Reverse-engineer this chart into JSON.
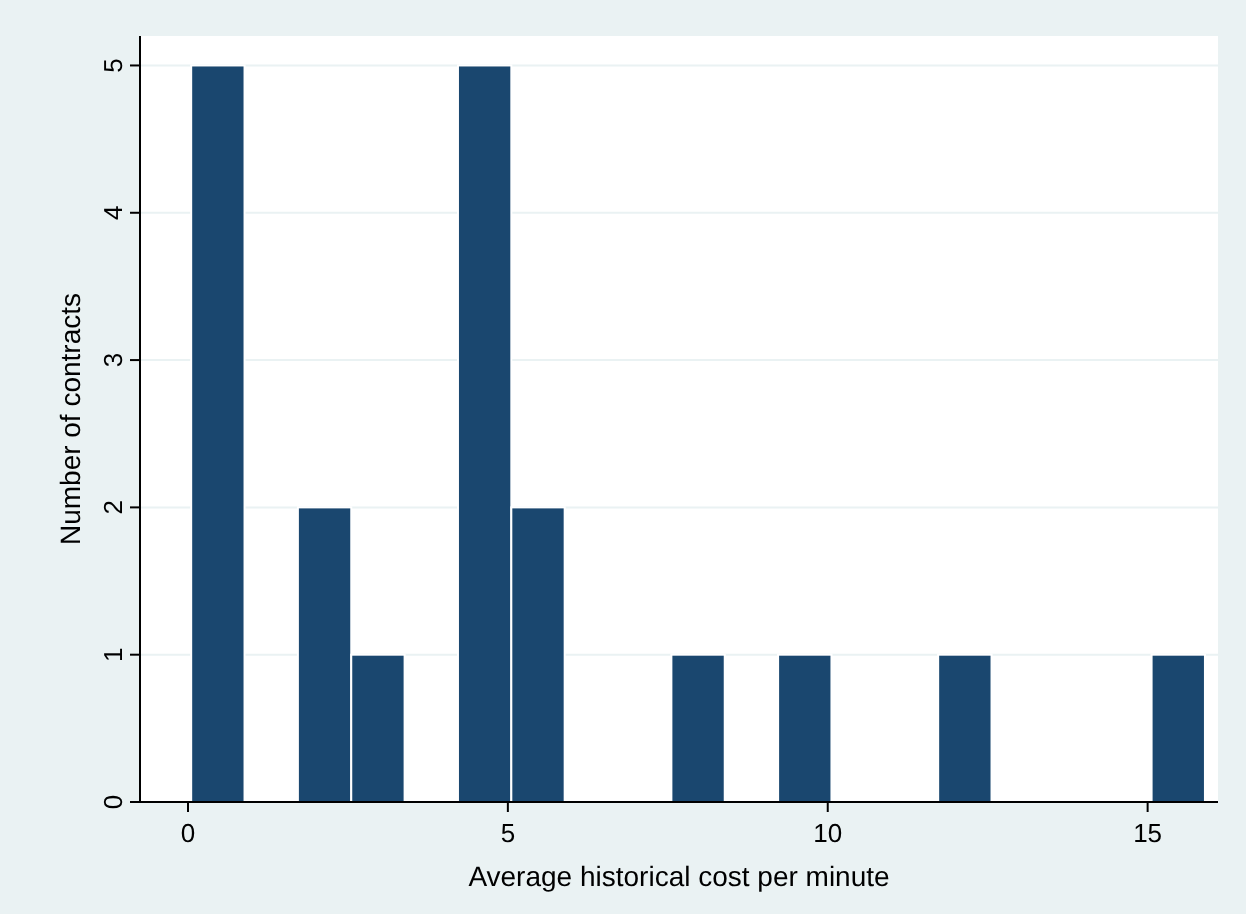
{
  "chart_data": {
    "type": "histogram",
    "xlabel": "Average historical cost per minute",
    "ylabel": "Number of contracts",
    "bins": [
      0.05,
      0.884,
      1.718,
      2.552,
      3.386,
      4.22,
      5.054,
      5.888,
      6.722,
      7.556,
      8.39,
      9.224,
      10.058,
      10.892,
      11.726,
      12.56,
      13.394,
      14.228,
      15.062,
      15.896
    ],
    "values": [
      5,
      0,
      2,
      1,
      0,
      5,
      2,
      0,
      0,
      1,
      0,
      1,
      0,
      0,
      1,
      0,
      0,
      0,
      1
    ],
    "color": "#1a476f",
    "xlim": [
      -0.75,
      16.1
    ],
    "xticks": [
      0,
      5,
      10,
      15
    ],
    "ylim": [
      0,
      5.2
    ],
    "yticks": [
      0,
      1,
      2,
      3,
      4,
      5
    ],
    "grid": "y"
  }
}
